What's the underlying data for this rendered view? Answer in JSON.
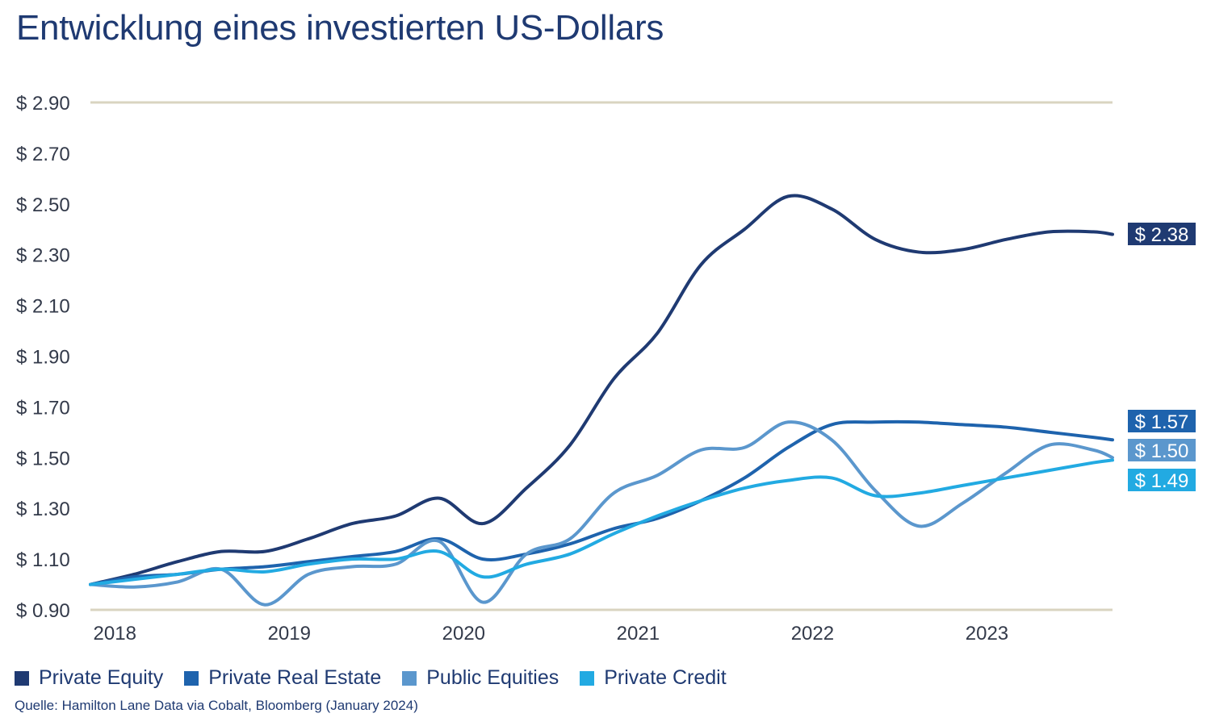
{
  "chart_data": {
    "type": "line",
    "title": "Entwicklung eines investierten US-Dollars",
    "xlabel": "",
    "ylabel": "",
    "ylim": [
      0.9,
      2.9
    ],
    "xlim": [
      2017.86,
      2023.72
    ],
    "y_ticks": [
      0.9,
      1.1,
      1.3,
      1.5,
      1.7,
      1.9,
      2.1,
      2.3,
      2.5,
      2.7,
      2.9
    ],
    "y_tick_labels": [
      "$ 0.90",
      "$ 1.10",
      "$ 1.30",
      "$ 1.50",
      "$ 1.70",
      "$ 1.90",
      "$ 2.10",
      "$ 2.30",
      "$ 2.50",
      "$ 2.70",
      "$ 2.90"
    ],
    "x_ticks": [
      2018,
      2019,
      2020,
      2021,
      2022,
      2023
    ],
    "x_tick_labels": [
      "2018",
      "2019",
      "2020",
      "2021",
      "2022",
      "2023"
    ],
    "grid": "horizontal lines at top and bottom only",
    "grid_color": "#d9d4c0",
    "legend_position": "bottom-left",
    "x": [
      2017.86,
      2018.11,
      2018.36,
      2018.61,
      2018.86,
      2019.11,
      2019.36,
      2019.61,
      2019.86,
      2020.11,
      2020.36,
      2020.61,
      2020.86,
      2021.11,
      2021.36,
      2021.61,
      2021.86,
      2022.11,
      2022.36,
      2022.61,
      2022.86,
      2023.11,
      2023.36,
      2023.61,
      2023.72
    ],
    "series": [
      {
        "name": "Private Equity",
        "color": "#1f3a72",
        "end_label": "$ 2.38",
        "values": [
          1.0,
          1.04,
          1.09,
          1.13,
          1.13,
          1.18,
          1.24,
          1.27,
          1.34,
          1.24,
          1.38,
          1.55,
          1.81,
          1.99,
          2.26,
          2.4,
          2.53,
          2.48,
          2.36,
          2.31,
          2.32,
          2.36,
          2.39,
          2.39,
          2.38
        ]
      },
      {
        "name": "Private Real Estate",
        "color": "#1e63ad",
        "end_label": "$ 1.57",
        "values": [
          1.0,
          1.03,
          1.04,
          1.06,
          1.07,
          1.09,
          1.11,
          1.13,
          1.18,
          1.1,
          1.12,
          1.16,
          1.22,
          1.26,
          1.33,
          1.42,
          1.54,
          1.63,
          1.64,
          1.64,
          1.63,
          1.62,
          1.6,
          1.58,
          1.57
        ]
      },
      {
        "name": "Public Equities",
        "color": "#5b97cd",
        "end_label": "$ 1.50",
        "values": [
          1.0,
          0.99,
          1.01,
          1.06,
          0.92,
          1.04,
          1.07,
          1.08,
          1.17,
          0.93,
          1.12,
          1.18,
          1.36,
          1.43,
          1.53,
          1.54,
          1.64,
          1.57,
          1.37,
          1.23,
          1.32,
          1.44,
          1.55,
          1.53,
          1.5
        ]
      },
      {
        "name": "Private Credit",
        "color": "#22aae2",
        "end_label": "$ 1.49",
        "values": [
          1.0,
          1.02,
          1.04,
          1.06,
          1.05,
          1.08,
          1.1,
          1.1,
          1.13,
          1.03,
          1.08,
          1.12,
          1.2,
          1.27,
          1.33,
          1.38,
          1.41,
          1.42,
          1.35,
          1.36,
          1.39,
          1.42,
          1.45,
          1.48,
          1.49
        ]
      }
    ],
    "source": "Quelle: Hamilton Lane Data via Cobalt, Bloomberg (January 2024)"
  }
}
